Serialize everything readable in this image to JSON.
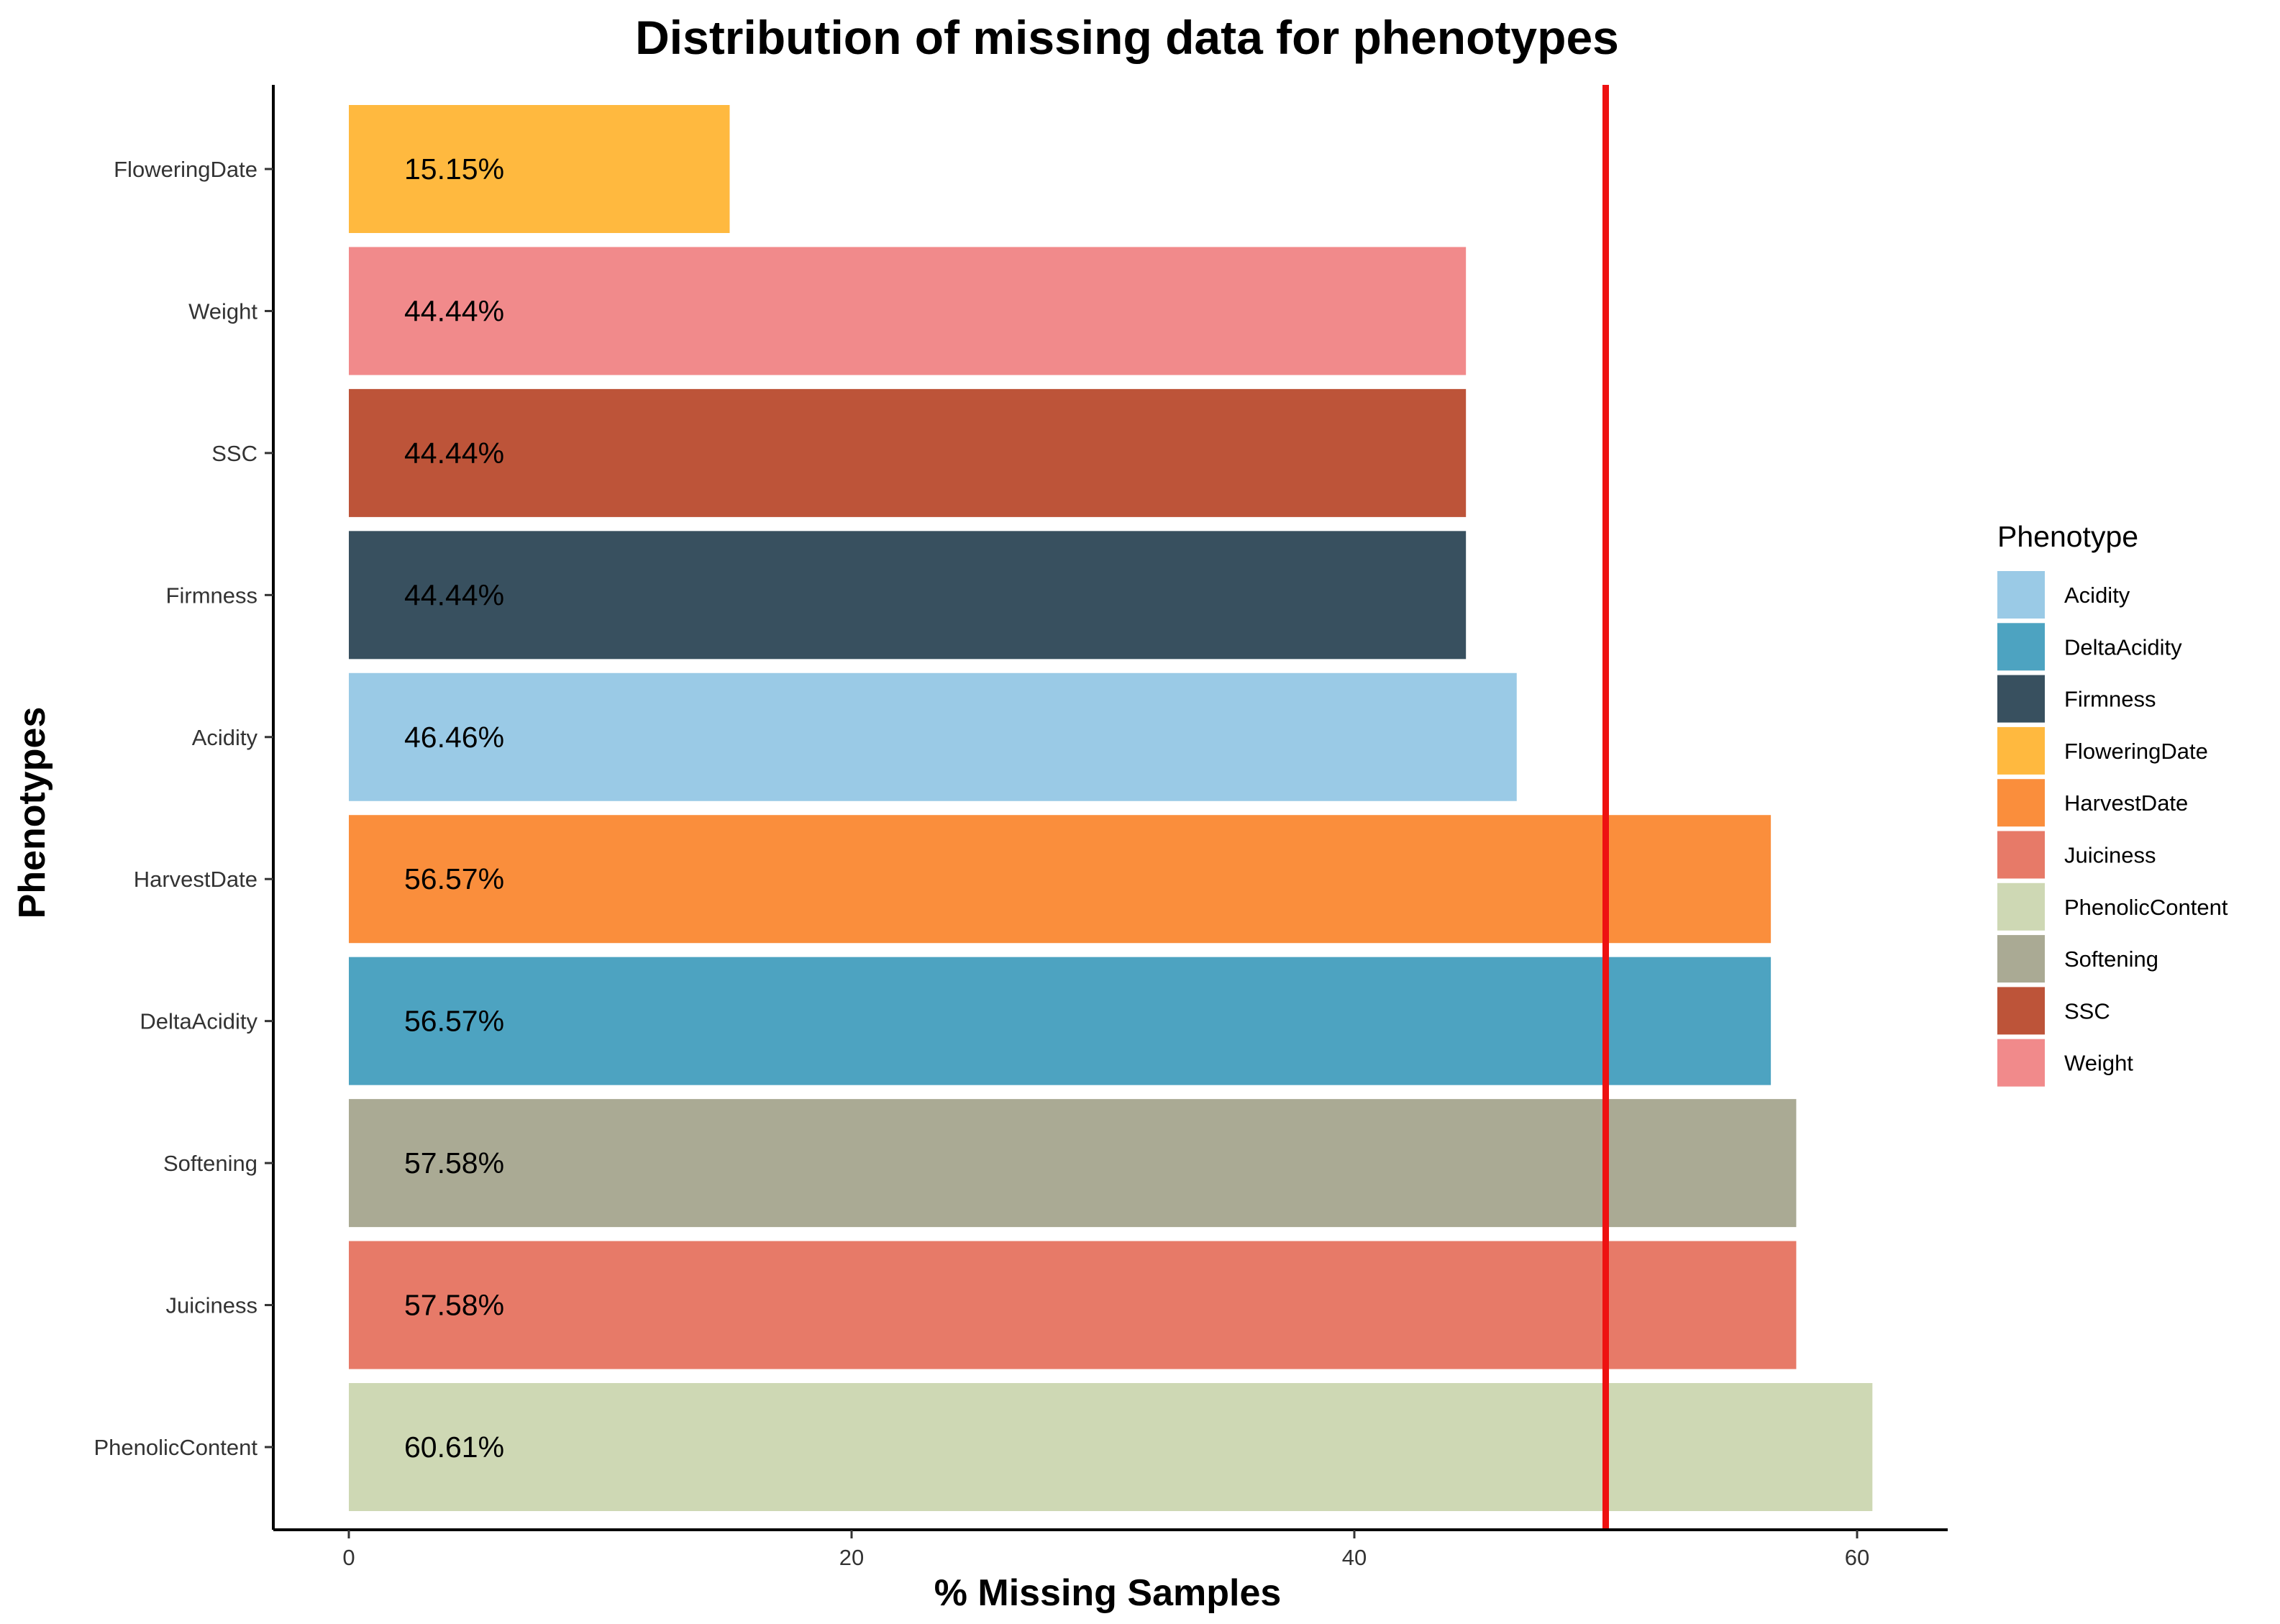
{
  "chart_data": {
    "type": "bar",
    "orientation": "horizontal",
    "title": "Distribution of missing data for phenotypes",
    "xlabel": "% Missing Samples",
    "ylabel": "Phenotypes",
    "xlim": [
      0,
      63
    ],
    "xticks": [
      0,
      20,
      40,
      60
    ],
    "grid": false,
    "categories": [
      "FloweringDate",
      "Weight",
      "SSC",
      "Firmness",
      "Acidity",
      "HarvestDate",
      "DeltaAcidity",
      "Softening",
      "Juiciness",
      "PhenolicContent"
    ],
    "values": [
      15.15,
      44.44,
      44.44,
      44.44,
      46.46,
      56.57,
      56.57,
      57.58,
      57.58,
      60.61
    ],
    "labels": [
      "15.15%",
      "44.44%",
      "44.44%",
      "44.44%",
      "46.46%",
      "56.57%",
      "56.57%",
      "57.58%",
      "57.58%",
      "60.61%"
    ],
    "colors": {
      "Acidity": "#9ACAE6",
      "DeltaAcidity": "#4DA3C1",
      "Firmness": "#38505F",
      "FloweringDate": "#FFB93F",
      "HarvestDate": "#FA8E3C",
      "Juiciness": "#E77A68",
      "PhenolicContent": "#CED8B4",
      "Softening": "#AAAA94",
      "SSC": "#BD5439",
      "Weight": "#F18A8B"
    },
    "reference_line": {
      "x": 50,
      "color": "#EE1111"
    },
    "legend": {
      "title": "Phenotype",
      "placement": "right",
      "entries": [
        "Acidity",
        "DeltaAcidity",
        "Firmness",
        "FloweringDate",
        "HarvestDate",
        "Juiciness",
        "PhenolicContent",
        "Softening",
        "SSC",
        "Weight"
      ]
    }
  }
}
